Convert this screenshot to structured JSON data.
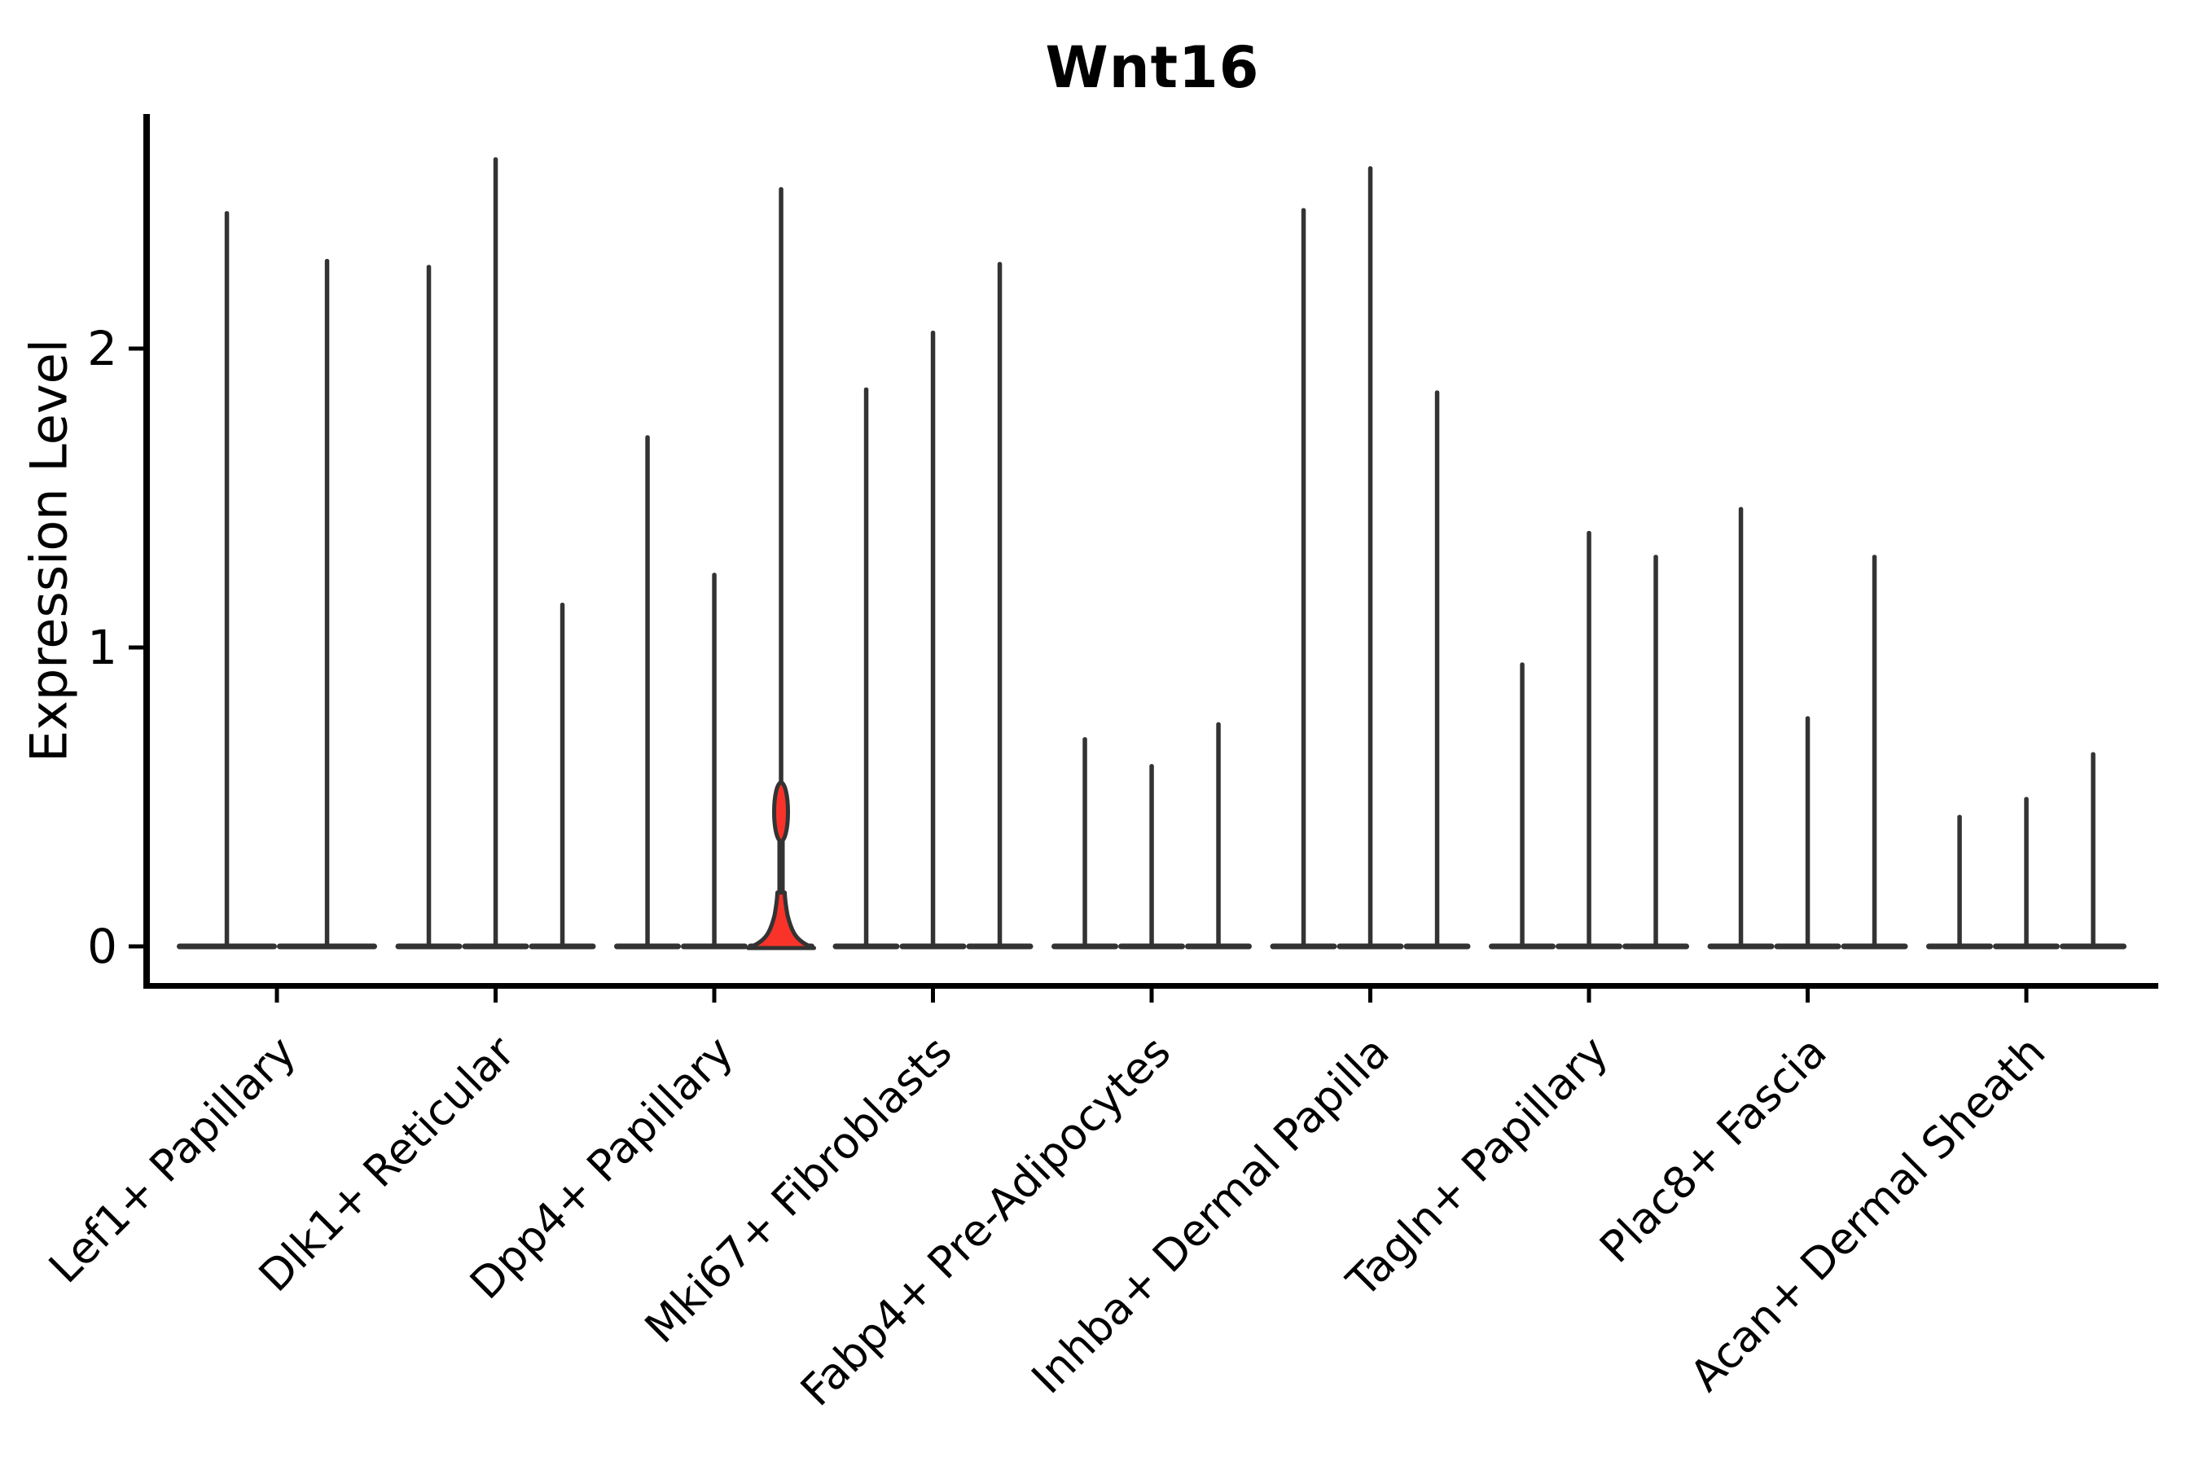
{
  "title": "Wnt16",
  "y_axis": {
    "label": "Expression Level"
  },
  "colors": {
    "violin_line": "#333333",
    "highlight_fill": "#f9332a",
    "axis": "#000000",
    "background": "#ffffff"
  },
  "chart_data": {
    "type": "violin",
    "title": "Wnt16",
    "xlabel": "",
    "ylabel": "Expression Level",
    "ylim": [
      0,
      2.78
    ],
    "yticks": [
      "0",
      "1",
      "2"
    ],
    "ytick_values": [
      0,
      1,
      2
    ],
    "grid": false,
    "legend": "none",
    "x_tick_rotation_deg": 45,
    "description": "Thin spike-shaped violins of Wnt16 expression per cell type; 3 violins per category (first category has 2); one violin in Dpp4+ Papillary is highlighted red with a density bulge near 0 and a small lens bulge at ~0.45.",
    "groups": [
      {
        "category": "Lef1+ Papillary",
        "violins": [
          {
            "max": 2.46
          },
          {
            "max": 2.3
          }
        ]
      },
      {
        "category": "Dlk1+ Reticular",
        "violins": [
          {
            "max": 2.28
          },
          {
            "max": 2.64
          },
          {
            "max": 1.15
          }
        ]
      },
      {
        "category": "Dpp4+ Papillary",
        "violins": [
          {
            "max": 1.71
          },
          {
            "max": 1.25
          },
          {
            "max": 2.54,
            "highlighted": true,
            "bulge_value": 0.45,
            "base_height_value": 0.18
          }
        ]
      },
      {
        "category": "Mki67+ Fibroblasts",
        "violins": [
          {
            "max": 1.87
          },
          {
            "max": 2.06
          },
          {
            "max": 2.29
          }
        ]
      },
      {
        "category": "Fabp4+ Pre-Adipocytes",
        "violins": [
          {
            "max": 0.7
          },
          {
            "max": 0.61
          },
          {
            "max": 0.75
          }
        ]
      },
      {
        "category": "Inhba+ Dermal Papilla",
        "violins": [
          {
            "max": 2.47
          },
          {
            "max": 2.61
          },
          {
            "max": 1.86
          }
        ]
      },
      {
        "category": "Tagln+ Papillary",
        "violins": [
          {
            "max": 0.95
          },
          {
            "max": 1.39
          },
          {
            "max": 1.31
          }
        ]
      },
      {
        "category": "Plac8+ Fascia",
        "violins": [
          {
            "max": 1.47
          },
          {
            "max": 0.77
          },
          {
            "max": 1.31
          }
        ]
      },
      {
        "category": "Acan+ Dermal Sheath",
        "violins": [
          {
            "max": 0.44
          },
          {
            "max": 0.5
          },
          {
            "max": 0.65
          }
        ]
      }
    ]
  }
}
